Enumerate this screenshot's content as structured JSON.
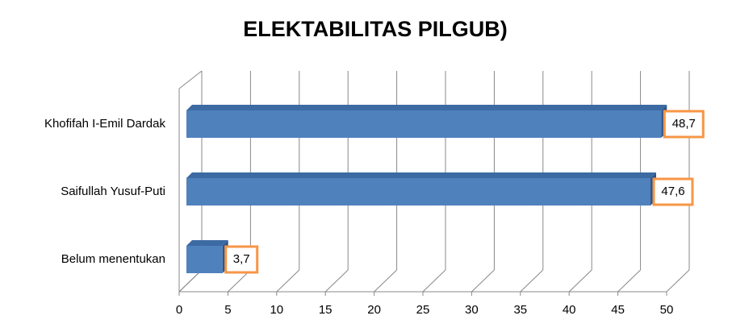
{
  "chart_data": {
    "type": "bar",
    "orientation": "horizontal",
    "title": "ELEKTABILITAS PILGUB)",
    "categories": [
      "Khofifah I-Emil Dardak",
      "Saifullah Yusuf-Puti",
      "Belum menentukan"
    ],
    "values": [
      48.7,
      47.6,
      3.7
    ],
    "value_labels": [
      "48,7",
      "47,6",
      "3,7"
    ],
    "color": "#4f81bd",
    "label_border_color": "#f79646",
    "xlim": [
      0,
      50
    ],
    "xticks": [
      0,
      5,
      10,
      15,
      20,
      25,
      30,
      35,
      40,
      45,
      50
    ],
    "grid": true
  }
}
